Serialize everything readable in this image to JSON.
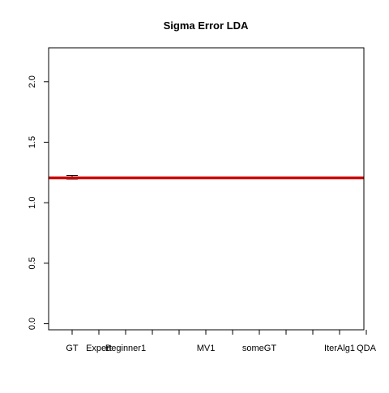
{
  "chart_data": {
    "type": "boxplot",
    "title": "Sigma Error LDA",
    "xlabel": "",
    "ylabel": "",
    "ylim": [
      -0.05,
      2.28
    ],
    "y_ticks": [
      0.0,
      0.5,
      1.0,
      1.5,
      2.0
    ],
    "y_tick_labels": [
      "0.0",
      "0.5",
      "1.0",
      "1.5",
      "2.0"
    ],
    "categories": [
      "GT",
      "Expert",
      "Beginner1",
      "",
      "",
      "MV1",
      "",
      "someGT",
      "",
      "",
      "IterAlg1",
      "QDA"
    ],
    "category_labels_shown": [
      "GT",
      "Expert",
      "Beginner1",
      "MV1",
      "someGT",
      "IterAlg1",
      "QDA"
    ],
    "boxes": [
      {
        "category": "GT",
        "min": 1.195,
        "q1": 1.2,
        "median": 1.205,
        "q3": 1.21,
        "max": 1.225
      }
    ],
    "reference_line": {
      "y": 1.205,
      "color": "#cc0000"
    },
    "grid": false,
    "legend": "none"
  }
}
